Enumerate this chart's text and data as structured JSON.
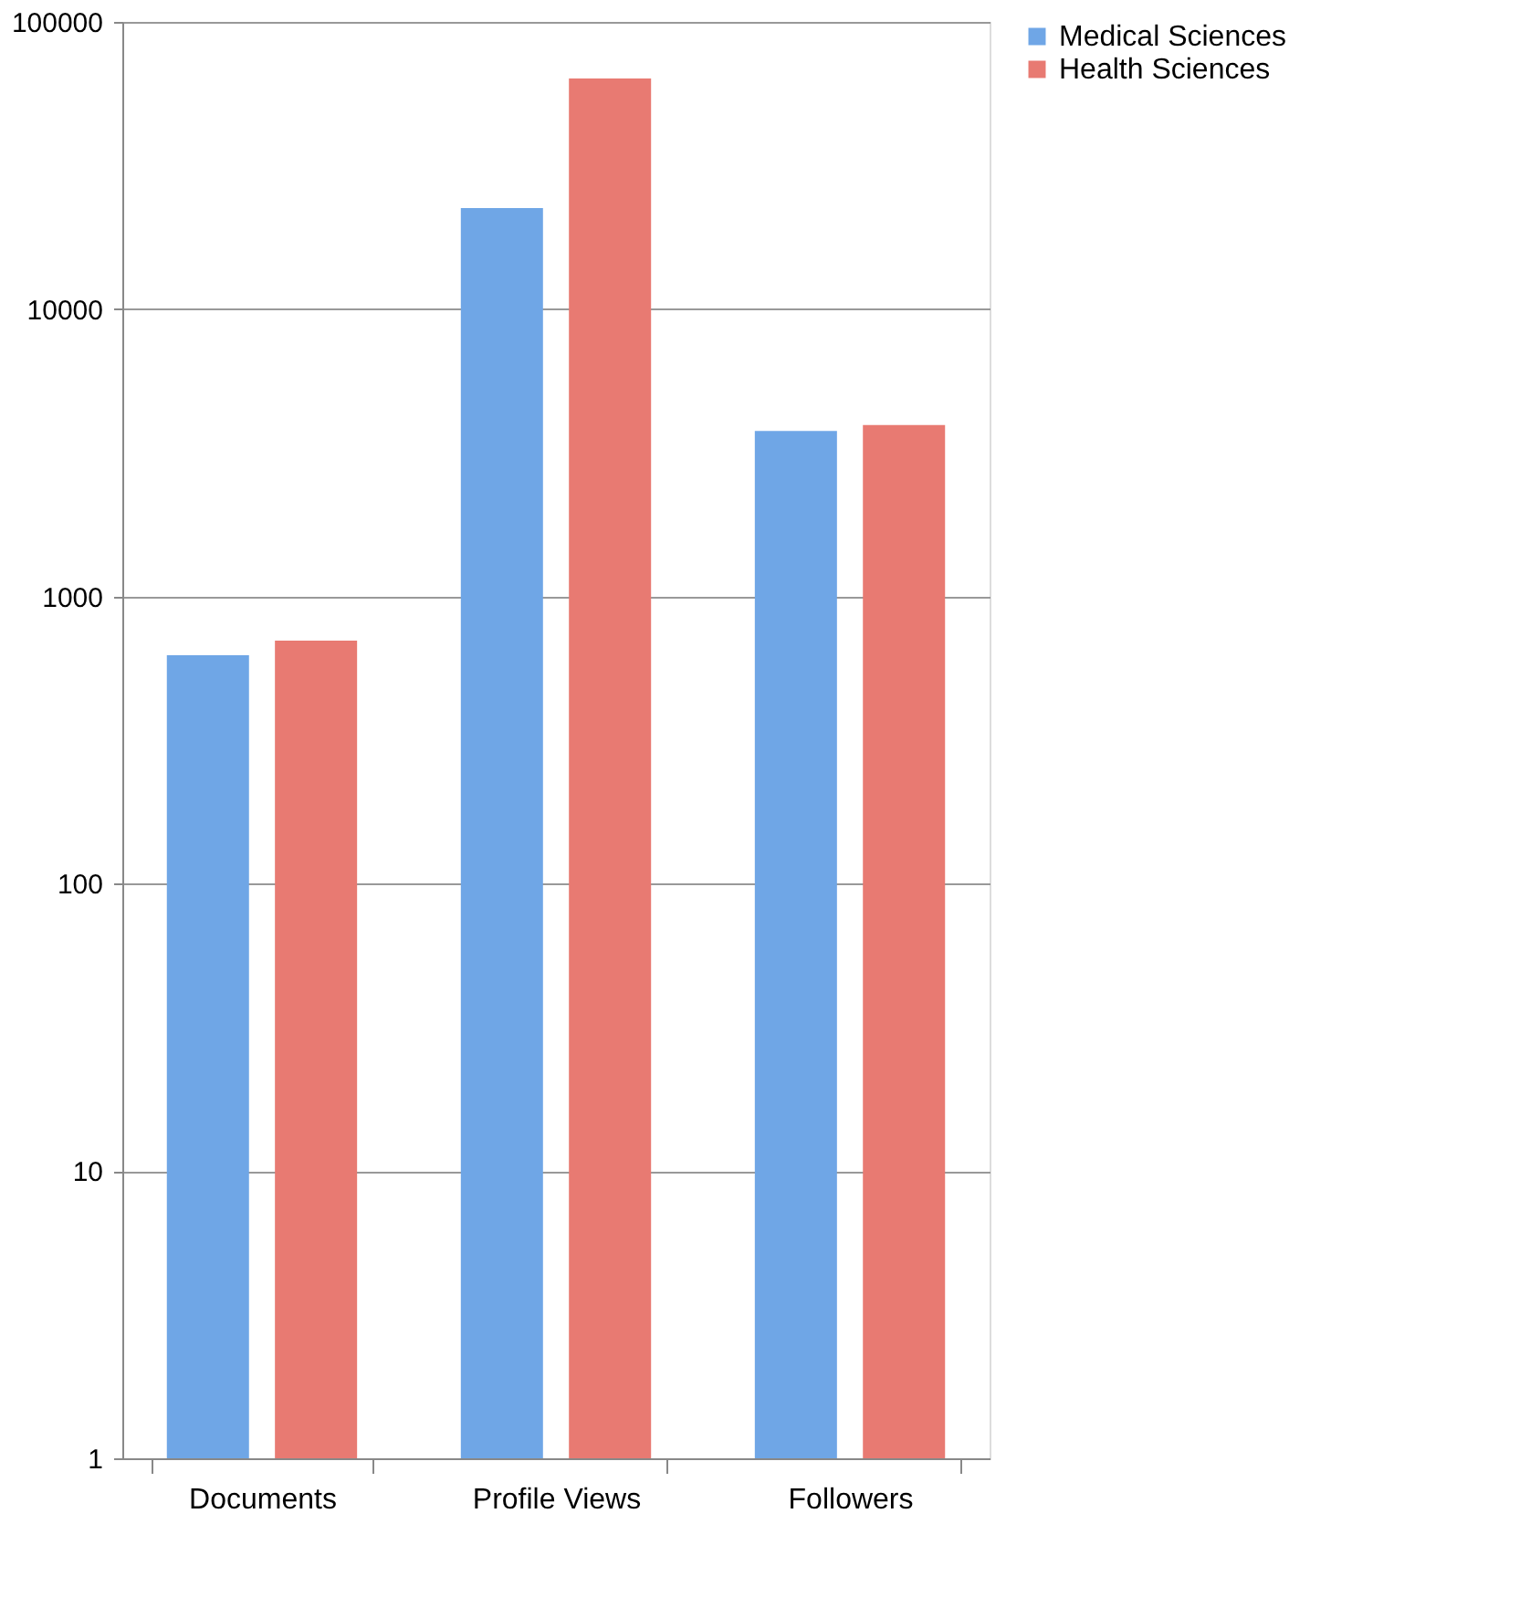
{
  "chart_data": {
    "type": "bar",
    "categories": [
      "Documents",
      "Profile Views",
      "Followers"
    ],
    "series": [
      {
        "name": "Medical Sciences",
        "color": "#6fa6e6",
        "values": [
          624,
          22500,
          3770
        ]
      },
      {
        "name": "Health Sciences",
        "color": "#e87a72",
        "values": [
          702,
          63500,
          3950
        ]
      }
    ],
    "log": true,
    "ylim": [
      1,
      100000
    ],
    "yticks": [
      1,
      10,
      100,
      1000,
      10000,
      100000
    ],
    "grid": "y",
    "legend": "right"
  }
}
